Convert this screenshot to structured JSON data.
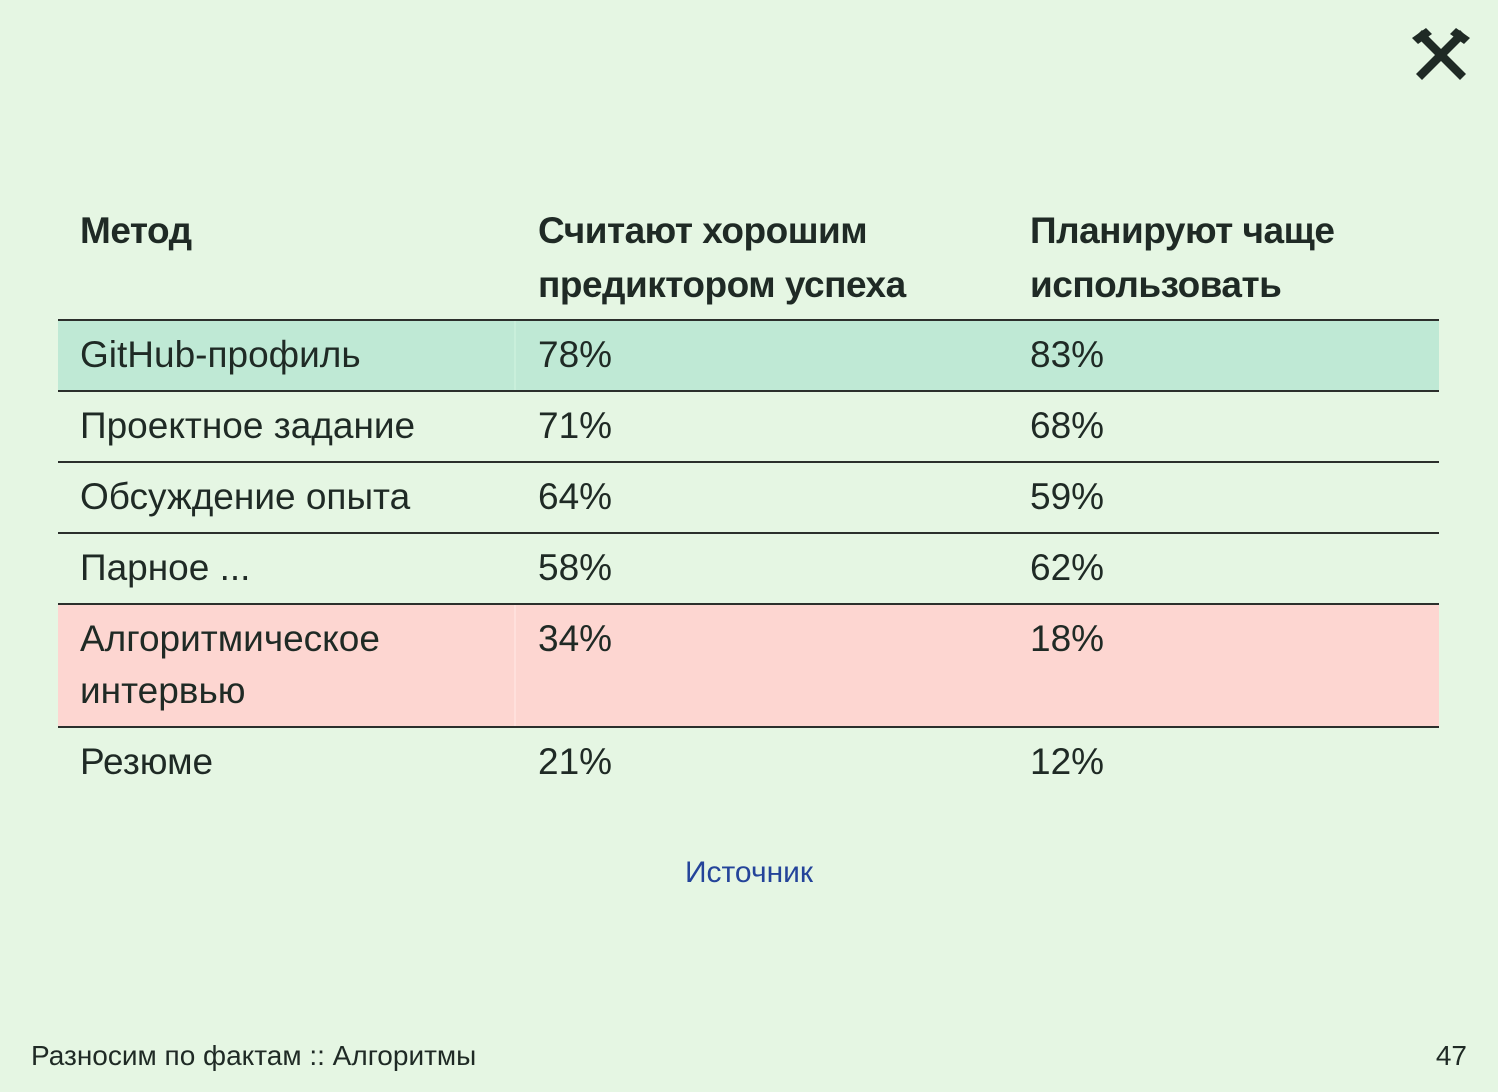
{
  "table": {
    "headers": [
      "Метод",
      "Считают хорошим предиктором успеха",
      "Планируют чаще использовать"
    ],
    "rows": [
      {
        "method": "GitHub-профиль",
        "predictor": "78%",
        "plan": "83%",
        "highlight": "green"
      },
      {
        "method": "Проектное задание",
        "predictor": "71%",
        "plan": "68%",
        "highlight": "none"
      },
      {
        "method": "Обсуждение опыта",
        "predictor": "64%",
        "plan": "59%",
        "highlight": "none"
      },
      {
        "method": "Парное ...",
        "predictor": "58%",
        "plan": "62%",
        "highlight": "none"
      },
      {
        "method": "Алгоритмическое интервью",
        "predictor": "34%",
        "plan": "18%",
        "highlight": "red"
      },
      {
        "method": "Резюме",
        "predictor": "21%",
        "plan": "12%",
        "highlight": "none"
      }
    ]
  },
  "source_link": "Источник",
  "footer": {
    "title": "Разносим по фактам :: Алгоритмы",
    "page_number": "47"
  },
  "colors": {
    "background": "#e5f6e3",
    "highlight_green": "#bfe9d5",
    "highlight_red": "#fdd6d1",
    "link": "#24449a"
  },
  "icons": {
    "logo": "crossed-hammers-logo"
  }
}
